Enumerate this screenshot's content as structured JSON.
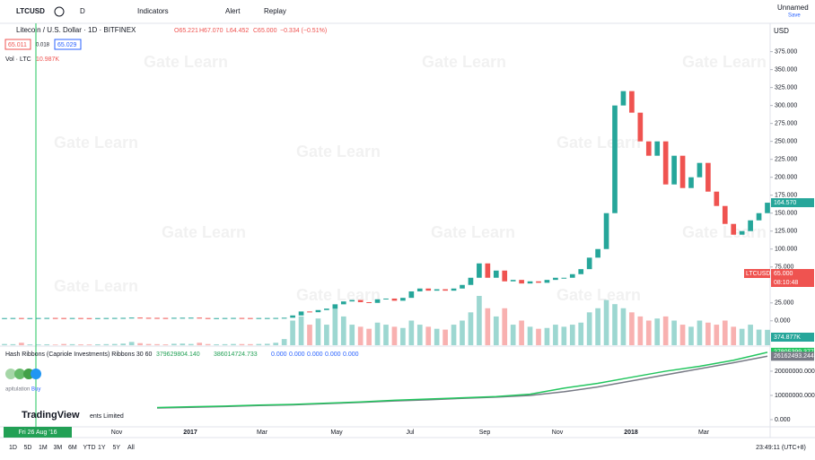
{
  "toolbar": {
    "symbol": "LTCUSD",
    "interval": "D",
    "indicators": "Indicators",
    "alert": "Alert",
    "replay": "Replay",
    "layout_name": "Unnamed",
    "save": "Save",
    "currency": "USD"
  },
  "legend": {
    "title": "Litecoin / U.S. Dollar · 1D · BITFINEX",
    "open": "O65.221",
    "high": "H67.070",
    "low": "L64.452",
    "close": "C65.000",
    "change": "−0.334 (−0.51%)",
    "bid": "65.011",
    "spread": "0.018",
    "ask": "65.029",
    "volume_label": "Vol · LTC",
    "volume_value": "10.987K"
  },
  "chart": {
    "type": "candlestick",
    "up_color": "#26a69a",
    "down_color": "#ef5350",
    "closes": [
      3.8,
      3.9,
      3.7,
      3.8,
      3.9,
      4.0,
      3.9,
      3.8,
      3.9,
      3.8,
      3.7,
      3.8,
      3.9,
      4.0,
      4.1,
      4.5,
      4.2,
      4.1,
      4.0,
      3.9,
      4.2,
      4.3,
      4.4,
      3.9,
      3.8,
      3.8,
      3.9,
      4.0,
      3.9,
      3.8,
      3.9,
      3.9,
      4.0,
      4.3,
      7.5,
      13,
      12,
      15,
      17,
      23,
      27,
      29,
      26,
      25,
      30,
      31,
      28,
      32,
      41,
      45,
      42,
      44,
      42,
      45,
      50,
      60,
      80,
      60,
      70,
      55,
      57,
      52,
      55,
      53,
      57,
      60,
      60,
      65,
      72,
      88,
      100,
      150,
      300,
      320,
      290,
      250,
      230,
      250,
      190,
      230,
      185,
      200,
      220,
      180,
      160,
      135,
      120,
      125,
      140,
      150,
      164.57
    ],
    "volumes": [
      30000,
      25000,
      60000,
      20000,
      18000,
      22000,
      15000,
      30000,
      25000,
      20000,
      18000,
      22000,
      26000,
      30000,
      40000,
      80000,
      50000,
      30000,
      25000,
      20000,
      35000,
      40000,
      30000,
      60000,
      28000,
      22000,
      25000,
      30000,
      28000,
      26000,
      30000,
      35000,
      60000,
      150000,
      600000,
      700000,
      500000,
      650000,
      500000,
      900000,
      700000,
      500000,
      450000,
      400000,
      550000,
      500000,
      450000,
      420000,
      600000,
      500000,
      450000,
      400000,
      380000,
      500000,
      600000,
      800000,
      1200000,
      900000,
      700000,
      900000,
      500000,
      600000,
      450000,
      400000,
      420000,
      500000,
      450000,
      500000,
      550000,
      800000,
      900000,
      1100000,
      1000000,
      900000,
      800000,
      700000,
      600000,
      650000,
      700000,
      600000,
      500000,
      450000,
      600000,
      550000,
      500000,
      600000,
      450000,
      400000,
      500000,
      380000,
      374877
    ],
    "ylim": [
      -34,
      397
    ],
    "yticks": [
      {
        "value": 0,
        "label": "0.000"
      },
      {
        "value": 25,
        "label": "25.000"
      },
      {
        "value": 75,
        "label": "75.000"
      },
      {
        "value": 100,
        "label": "100.000"
      },
      {
        "value": 125,
        "label": "125.000"
      },
      {
        "value": 150,
        "label": "150.000"
      },
      {
        "value": 175,
        "label": "175.000"
      },
      {
        "value": 200,
        "label": "200.000"
      },
      {
        "value": 225,
        "label": "225.000"
      },
      {
        "value": 250,
        "label": "250.000"
      },
      {
        "value": 275,
        "label": "275.000"
      },
      {
        "value": 300,
        "label": "300.000"
      },
      {
        "value": 325,
        "label": "325.000"
      },
      {
        "value": 350,
        "label": "350.000"
      },
      {
        "value": 375,
        "label": "375.000"
      }
    ],
    "last_price_tag": "164.570",
    "symbol_tag": "LTCUSD",
    "price_tag": "65.000",
    "countdown": "08:10:48",
    "volume_tag": "374.877K",
    "time_labels": [
      "Nov",
      "2017",
      "Mar",
      "May",
      "Jul",
      "Sep",
      "Nov",
      "2018",
      "Mar"
    ],
    "crosshair_label": "Fri 26 Aug '16"
  },
  "indicator": {
    "type": "line",
    "title": "Hash Ribbons (Capriole Investments) Ribbons 30 60",
    "readouts": [
      "379629804.140",
      "386014724.733",
      "0.000",
      "0.000",
      "0.000",
      "0.000",
      "0.000"
    ],
    "series": [
      {
        "color": "#22c55e",
        "values": [
          5000000,
          5300000,
          5600000,
          6000000,
          6300000,
          6800000,
          7300000,
          8000000,
          8500000,
          9000000,
          9500000,
          10500000,
          13000000,
          15000000,
          17500000,
          20000000,
          22000000,
          24500000,
          27805399.377
        ]
      },
      {
        "color": "#787b86",
        "values": [
          4800000,
          5100000,
          5400000,
          5800000,
          6100000,
          6600000,
          7100000,
          7700000,
          8200000,
          8800000,
          9300000,
          10000000,
          11500000,
          13500000,
          16000000,
          18500000,
          21000000,
          23500000,
          26162493.244
        ]
      }
    ],
    "ylim": [
      -2600000,
      29600000
    ],
    "yticks": [
      {
        "value": 0,
        "label": "0.000"
      },
      {
        "value": 10000000,
        "label": "10000000.000"
      },
      {
        "value": 20000000,
        "label": "20000000.000"
      }
    ],
    "tags": [
      "27805399.377",
      "26162493.244"
    ],
    "signal_labels": [
      "apitulation",
      "Buy"
    ]
  },
  "watermark": "Gate Learn",
  "branding": "TradingView",
  "branding_note": "ents Limited",
  "bottom_bar": {
    "ranges": [
      "1D",
      "5D",
      "1M",
      "3M",
      "6M",
      "YTD",
      "1Y",
      "5Y",
      "All"
    ],
    "clock": "23:49:11 (UTC+8)"
  }
}
